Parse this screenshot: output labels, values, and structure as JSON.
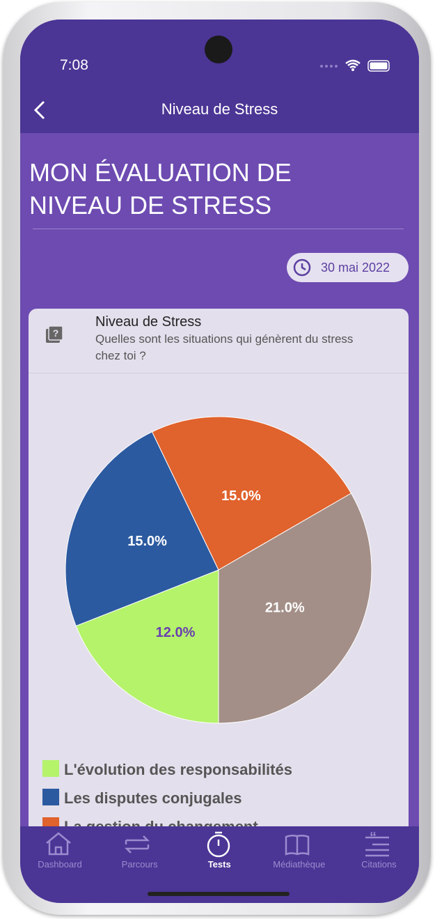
{
  "status": {
    "time": "7:08"
  },
  "header": {
    "title": "Niveau de Stress"
  },
  "page": {
    "title": "MON ÉVALUATION DE NIVEAU DE STRESS",
    "date": "30 mai 2022"
  },
  "question": {
    "category": "Niveau de Stress",
    "text": "Quelles sont les situations qui génèrent du stress chez toi ?"
  },
  "chart_data": {
    "type": "pie",
    "categories": [
      "L'évolution des responsabilités",
      "Les disputes conjugales",
      "La gestion du changement",
      null
    ],
    "values": [
      12,
      15,
      15,
      21
    ],
    "value_labels": [
      "12.0%",
      "15.0%",
      "15.0%",
      "21.0%"
    ],
    "colors": [
      "#b4f36a",
      "#2c5aa0",
      "#e0622c",
      "#a38f88"
    ]
  },
  "tabs": [
    "Dashboard",
    "Parcours",
    "Tests",
    "Médiathèque",
    "Citations"
  ]
}
